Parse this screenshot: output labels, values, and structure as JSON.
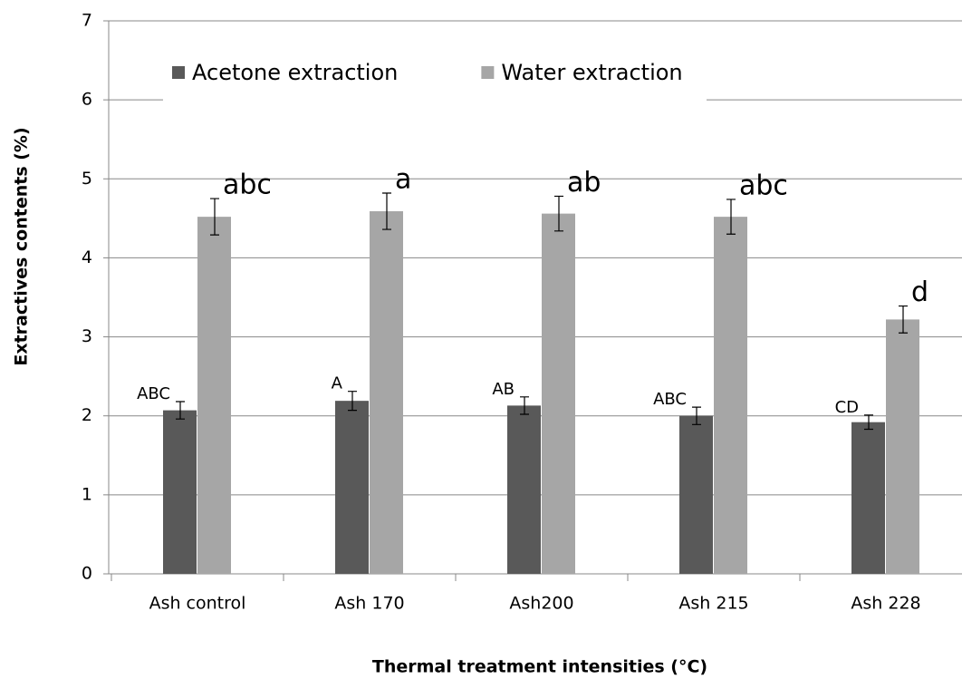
{
  "chart_data": {
    "type": "bar",
    "x_label": "Thermal treatment intensities (°C)",
    "y_label": "Extractives contents (%)",
    "categories": [
      "Ash control",
      "Ash 170",
      "Ash200",
      "Ash 215",
      "Ash 228"
    ],
    "series": [
      {
        "name": "Acetone extraction",
        "color": "#595959",
        "values": [
          2.07,
          2.19,
          2.13,
          2.0,
          1.92
        ],
        "errors": [
          0.11,
          0.12,
          0.11,
          0.11,
          0.09
        ],
        "annotations": [
          "ABC",
          "A",
          "AB",
          "ABC",
          "CD"
        ]
      },
      {
        "name": "Water extraction",
        "color": "#a6a6a6",
        "values": [
          4.52,
          4.59,
          4.56,
          4.52,
          3.22
        ],
        "errors": [
          0.23,
          0.23,
          0.22,
          0.22,
          0.17
        ],
        "annotations": [
          "abc",
          "a",
          "ab",
          "abc",
          "d"
        ]
      }
    ],
    "ylim": [
      0,
      7
    ],
    "yticks": [
      0,
      1,
      2,
      3,
      4,
      5,
      6,
      7
    ],
    "grid": true,
    "legend": "top-left"
  }
}
